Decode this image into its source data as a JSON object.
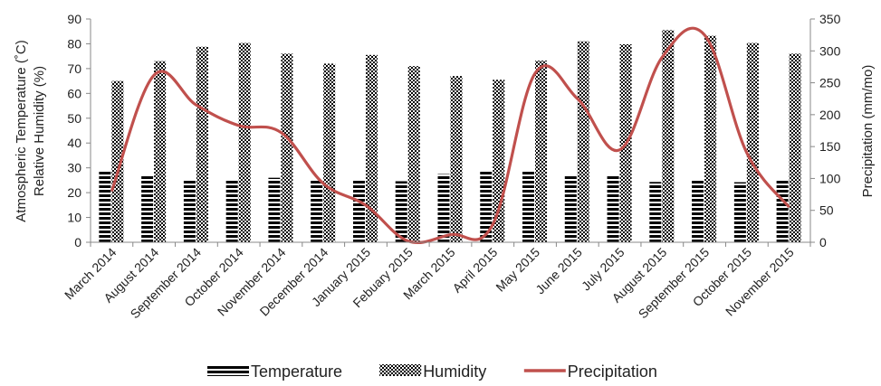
{
  "chart_data": {
    "type": "bar",
    "categories": [
      "March 2014",
      "August 2014",
      "September 2014",
      "October 2014",
      "November 2014",
      "December 2014",
      "January 2015",
      "Febuary 2015",
      "March 2015",
      "April 2015",
      "May 2015",
      "June 2015",
      "July 2015",
      "August 2015",
      "September 2015",
      "October 2015",
      "November 2015"
    ],
    "series": [
      {
        "name": "Temperature",
        "type": "bar",
        "axis": "left",
        "pattern": "horizontal-stripes",
        "values": [
          29,
          26.7,
          25,
          25.5,
          26,
          25.5,
          25,
          24.6,
          27.5,
          29,
          29,
          27.2,
          26.7,
          24.3,
          25.3,
          24.2,
          25
        ]
      },
      {
        "name": "Humidity",
        "type": "bar",
        "axis": "left",
        "pattern": "checker",
        "values": [
          65,
          73,
          78.8,
          80.3,
          76,
          72,
          75.5,
          71,
          67,
          65.5,
          73.2,
          81,
          79.8,
          85.5,
          83.2,
          80.3,
          76
        ]
      },
      {
        "name": "Precipitation",
        "type": "line",
        "axis": "right",
        "color": "#c0504d",
        "values": [
          80,
          262,
          215,
          183,
          172,
          92,
          58,
          2,
          12,
          28,
          265,
          225,
          145,
          290,
          325,
          140,
          55
        ]
      }
    ],
    "ylabel_left_lines": [
      "Atmospheric Temperature (˚C)",
      "Relative Humidity (%)"
    ],
    "ylabel_right": "Precipitation (mm/mo)",
    "ylim_left": [
      0,
      90
    ],
    "yticks_left": [
      "0",
      "10",
      "20",
      "30",
      "40",
      "50",
      "60",
      "70",
      "80",
      "90"
    ],
    "ylim_right": [
      0,
      350
    ],
    "yticks_right": [
      "0",
      "50",
      "100",
      "150",
      "200",
      "250",
      "300",
      "350"
    ],
    "legend_position": "bottom",
    "grid": false
  }
}
